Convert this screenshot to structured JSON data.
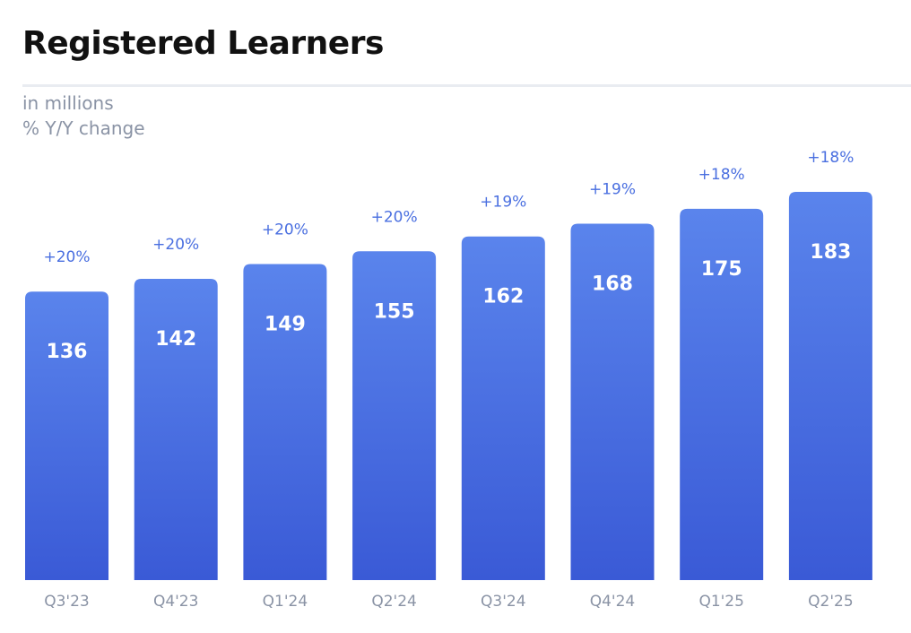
{
  "header": {
    "title": "Registered Learners",
    "units": "in millions",
    "change_label": "% Y/Y change"
  },
  "colors": {
    "bar_top": "#5a84ec",
    "bar_bottom": "#3a5ad6",
    "change_text": "#4a6fe0",
    "tick_text": "#8a93a5",
    "value_text": "#ffffff"
  },
  "chart_data": {
    "type": "bar",
    "title": "Registered Learners",
    "subtitle": "in millions",
    "categories": [
      "Q3'23",
      "Q4'23",
      "Q1'24",
      "Q2'24",
      "Q3'24",
      "Q4'24",
      "Q1'25",
      "Q2'25"
    ],
    "values": [
      136,
      142,
      149,
      155,
      162,
      168,
      175,
      183
    ],
    "yoy_change": [
      "+20%",
      "+20%",
      "+20%",
      "+20%",
      "+19%",
      "+19%",
      "+18%",
      "+18%"
    ],
    "ylabel": "",
    "xlabel": "",
    "ylim": [
      0,
      183
    ],
    "grid": false,
    "legend": "none"
  }
}
